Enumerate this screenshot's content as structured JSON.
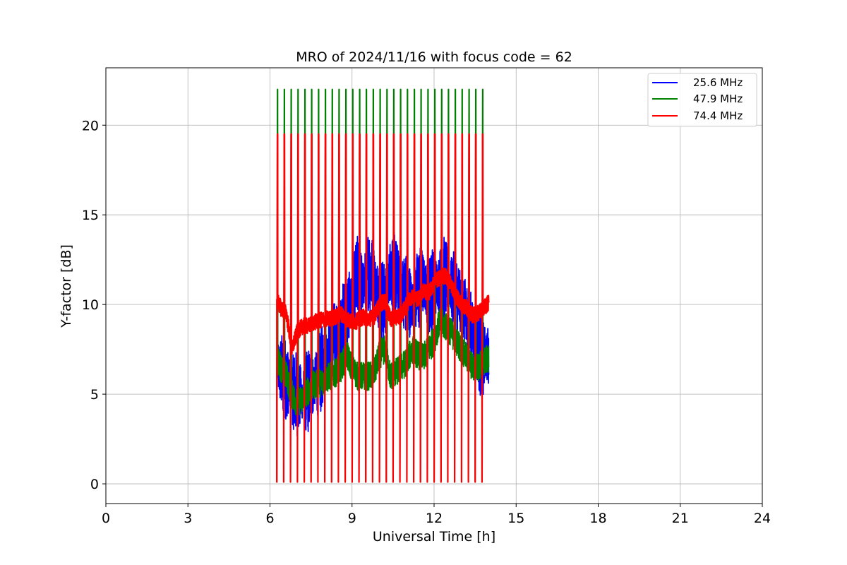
{
  "chart_data": {
    "type": "line",
    "title": "MRO of 2024/11/16 with focus code = 62",
    "xlabel": "Universal Time [h]",
    "ylabel": "Y-factor [dB]",
    "xlim": [
      0,
      24
    ],
    "ylim": [
      -1.1,
      23.2
    ],
    "xticks": [
      0,
      3,
      6,
      9,
      12,
      15,
      18,
      21,
      24
    ],
    "yticks": [
      0,
      5,
      10,
      15,
      20
    ],
    "grid": true,
    "legend_position": "top-right",
    "series": [
      {
        "name": "25.6 MHz",
        "color": "#0000ff",
        "x": [
          6.25,
          6.4,
          6.6,
          6.8,
          7.0,
          7.2,
          7.4,
          7.6,
          7.8,
          8.0,
          8.2,
          8.4,
          8.6,
          8.8,
          9.0,
          9.2,
          9.4,
          9.6,
          9.8,
          10.0,
          10.2,
          10.4,
          10.6,
          10.8,
          11.0,
          11.2,
          11.4,
          11.6,
          11.8,
          12.0,
          12.2,
          12.4,
          12.6,
          12.8,
          13.0,
          13.2,
          13.4,
          13.6,
          13.8,
          14.0
        ],
        "y": [
          6.5,
          6.2,
          5.8,
          5.2,
          5.0,
          4.8,
          5.2,
          5.6,
          6.0,
          7.0,
          7.5,
          8.0,
          8.8,
          9.5,
          10.5,
          11.5,
          11.0,
          12.0,
          11.5,
          10.5,
          10.0,
          12.0,
          11.5,
          11.0,
          10.5,
          10.0,
          10.8,
          11.2,
          10.5,
          11.0,
          11.2,
          11.5,
          11.0,
          10.5,
          10.0,
          9.0,
          8.5,
          7.5,
          7.0,
          7.2
        ]
      },
      {
        "name": "47.9 MHz",
        "color": "#008000",
        "x": [
          6.25,
          6.4,
          6.6,
          6.8,
          7.0,
          7.2,
          7.4,
          7.6,
          7.8,
          8.0,
          8.2,
          8.4,
          8.6,
          8.8,
          9.0,
          9.2,
          9.4,
          9.6,
          9.8,
          10.0,
          10.2,
          10.4,
          10.6,
          10.8,
          11.0,
          11.2,
          11.4,
          11.6,
          11.8,
          12.0,
          12.2,
          12.4,
          12.6,
          12.8,
          13.0,
          13.2,
          13.4,
          13.6,
          13.8,
          14.0
        ],
        "y": [
          7.0,
          6.5,
          6.0,
          5.0,
          4.5,
          4.8,
          5.2,
          5.5,
          5.6,
          5.8,
          6.0,
          6.2,
          6.5,
          7.2,
          6.5,
          6.0,
          6.0,
          6.0,
          6.1,
          7.2,
          7.5,
          6.0,
          6.2,
          6.5,
          6.8,
          7.5,
          7.2,
          7.0,
          7.5,
          8.0,
          9.0,
          8.8,
          8.5,
          8.0,
          7.5,
          7.0,
          6.5,
          6.5,
          6.8,
          7.0
        ]
      },
      {
        "name": "74.4 MHz",
        "color": "#ff0000",
        "x": [
          6.25,
          6.4,
          6.6,
          6.8,
          7.0,
          7.2,
          7.4,
          7.6,
          7.8,
          8.0,
          8.2,
          8.4,
          8.6,
          8.8,
          9.0,
          9.2,
          9.4,
          9.6,
          9.8,
          10.0,
          10.2,
          10.4,
          10.6,
          10.8,
          11.0,
          11.2,
          11.4,
          11.6,
          11.8,
          12.0,
          12.2,
          12.4,
          12.6,
          12.8,
          13.0,
          13.2,
          13.4,
          13.6,
          13.8,
          14.0
        ],
        "y": [
          10.3,
          9.8,
          9.5,
          7.5,
          8.5,
          8.8,
          8.8,
          9.0,
          9.1,
          9.2,
          9.2,
          9.3,
          9.5,
          9.2,
          9.0,
          9.1,
          9.3,
          9.2,
          9.3,
          10.0,
          10.2,
          9.2,
          9.3,
          9.4,
          10.0,
          10.5,
          10.3,
          10.8,
          10.6,
          11.2,
          11.5,
          11.6,
          11.2,
          10.5,
          10.0,
          9.8,
          9.4,
          9.5,
          9.8,
          10.1
        ]
      }
    ],
    "calibration_spikes": {
      "start_h": 6.25,
      "end_h": 13.75,
      "count": 31,
      "spike_low_db": 0.1,
      "peak_db": {
        "25.6 MHz": 19.5,
        "47.9 MHz": 22.0,
        "74.4 MHz": 19.5
      }
    }
  }
}
